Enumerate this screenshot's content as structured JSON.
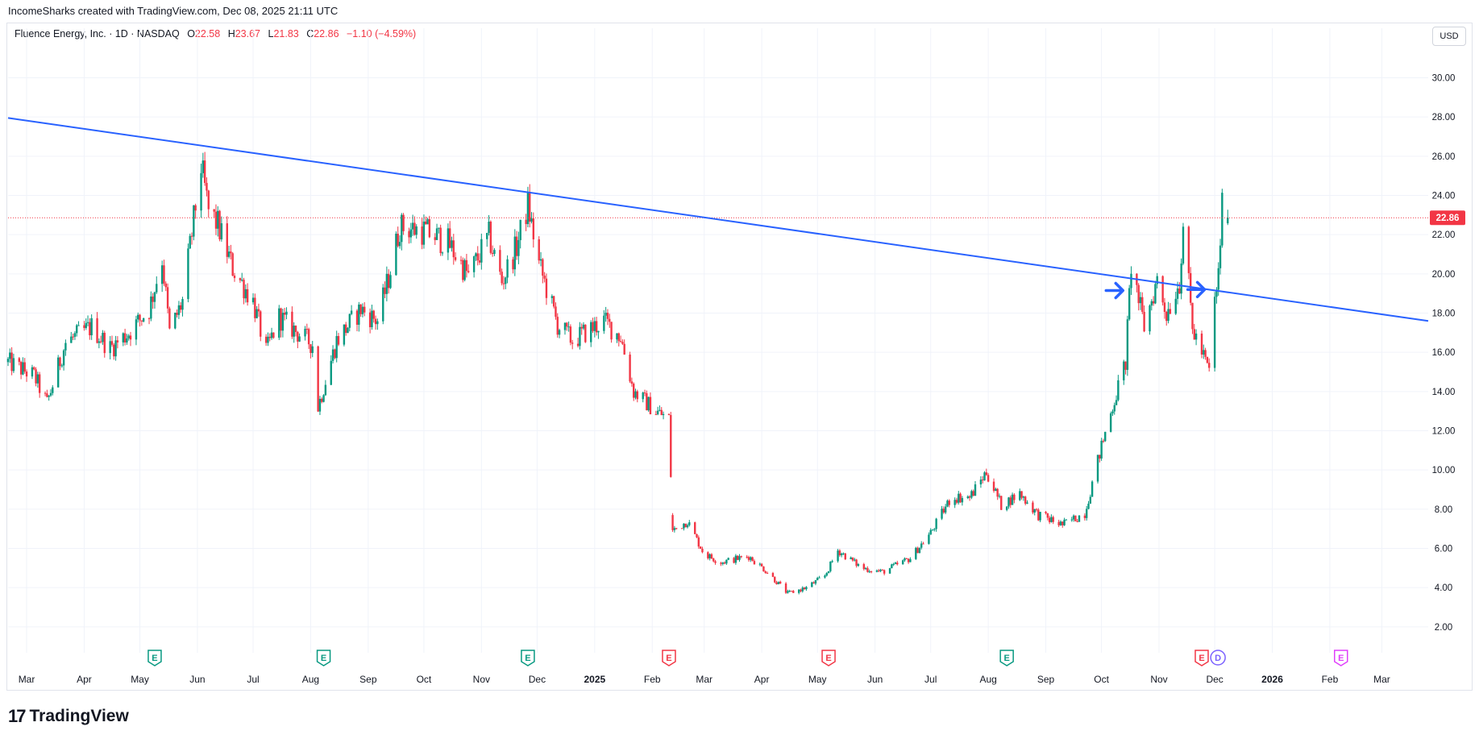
{
  "header": {
    "attribution": "IncomeSharks created with TradingView.com, Dec 08, 2025 21:11 UTC"
  },
  "legend": {
    "symbol": "Fluence Energy, Inc. · 1D · NASDAQ",
    "o_label": "O",
    "o_value": "22.58",
    "h_label": "H",
    "h_value": "23.67",
    "l_label": "L",
    "l_value": "21.83",
    "c_label": "C",
    "c_value": "22.86",
    "change": "−1.10 (−4.59%)"
  },
  "currency_button": "USD",
  "footer": {
    "brand": "TradingView",
    "logo_mark": "17"
  },
  "colors": {
    "up": "#089981",
    "down": "#f23645",
    "trendline": "#2962ff",
    "grid": "#f0f3fa",
    "last_price_bg": "#f23645",
    "event_future": "#e040fb"
  },
  "chart_data": {
    "type": "candlestick",
    "title": "Fluence Energy, Inc.",
    "interval": "1D",
    "exchange": "NASDAQ",
    "currency": "USD",
    "ylim": [
      1.5,
      31.5
    ],
    "y_ticks": [
      "2.00",
      "4.00",
      "6.00",
      "8.00",
      "10.00",
      "12.00",
      "14.00",
      "16.00",
      "18.00",
      "20.00",
      "22.00",
      "24.00",
      "26.00",
      "28.00",
      "30.00"
    ],
    "x_ticks": [
      "Mar",
      "Apr",
      "May",
      "Jun",
      "Jul",
      "Aug",
      "Sep",
      "Oct",
      "Nov",
      "Dec",
      "2025",
      "Feb",
      "Mar",
      "Apr",
      "May",
      "Jun",
      "Jul",
      "Aug",
      "Sep",
      "Oct",
      "Nov",
      "Dec",
      "2026",
      "Feb",
      "Mar"
    ],
    "x_tick_dates": [
      "2024-03-01",
      "2024-04-01",
      "2024-05-01",
      "2024-06-01",
      "2024-07-01",
      "2024-08-01",
      "2024-09-01",
      "2024-10-01",
      "2024-11-01",
      "2024-12-01",
      "2025-01-01",
      "2025-02-01",
      "2025-03-01",
      "2025-04-01",
      "2025-05-01",
      "2025-06-01",
      "2025-07-01",
      "2025-08-01",
      "2025-09-01",
      "2025-10-01",
      "2025-11-01",
      "2025-12-01",
      "2026-01-01",
      "2026-02-01",
      "2026-03-01"
    ],
    "last_price": "22.86",
    "price_anchors": [
      [
        "2024-02-20",
        15.5
      ],
      [
        "2024-03-05",
        14.8
      ],
      [
        "2024-03-12",
        13.4
      ],
      [
        "2024-03-22",
        16.5
      ],
      [
        "2024-04-05",
        17.3
      ],
      [
        "2024-04-15",
        16.2
      ],
      [
        "2024-04-25",
        17.0
      ],
      [
        "2024-05-06",
        18.2
      ],
      [
        "2024-05-13",
        20.8
      ],
      [
        "2024-05-17",
        17.0
      ],
      [
        "2024-05-24",
        18.6
      ],
      [
        "2024-06-03",
        25.5
      ],
      [
        "2024-06-07",
        23.2
      ],
      [
        "2024-06-12",
        22.5
      ],
      [
        "2024-06-20",
        20.3
      ],
      [
        "2024-07-01",
        18.6
      ],
      [
        "2024-07-08",
        16.0
      ],
      [
        "2024-07-15",
        17.8
      ],
      [
        "2024-07-25",
        17.0
      ],
      [
        "2024-08-02",
        16.4
      ],
      [
        "2024-08-05",
        13.2
      ],
      [
        "2024-08-15",
        16.6
      ],
      [
        "2024-08-28",
        18.2
      ],
      [
        "2024-09-06",
        17.6
      ],
      [
        "2024-09-12",
        19.8
      ],
      [
        "2024-09-18",
        22.4
      ],
      [
        "2024-10-01",
        22.2
      ],
      [
        "2024-10-14",
        21.6
      ],
      [
        "2024-10-25",
        19.9
      ],
      [
        "2024-11-05",
        21.9
      ],
      [
        "2024-11-12",
        19.6
      ],
      [
        "2024-11-20",
        21.4
      ],
      [
        "2024-11-26",
        23.5
      ],
      [
        "2024-12-02",
        20.5
      ],
      [
        "2024-12-12",
        17.4
      ],
      [
        "2024-12-20",
        16.6
      ],
      [
        "2025-01-06",
        17.6
      ],
      [
        "2025-01-15",
        16.8
      ],
      [
        "2025-01-22",
        14.0
      ],
      [
        "2025-02-03",
        13.0
      ],
      [
        "2025-02-10",
        12.6
      ],
      [
        "2025-02-12",
        6.9
      ],
      [
        "2025-02-20",
        7.4
      ],
      [
        "2025-03-01",
        5.7
      ],
      [
        "2025-03-10",
        5.3
      ],
      [
        "2025-03-25",
        5.6
      ],
      [
        "2025-04-04",
        4.8
      ],
      [
        "2025-04-15",
        3.7
      ],
      [
        "2025-04-25",
        4.0
      ],
      [
        "2025-05-05",
        4.6
      ],
      [
        "2025-05-12",
        5.9
      ],
      [
        "2025-05-25",
        5.0
      ],
      [
        "2025-06-05",
        4.8
      ],
      [
        "2025-06-20",
        5.5
      ],
      [
        "2025-07-01",
        6.8
      ],
      [
        "2025-07-12",
        8.6
      ],
      [
        "2025-07-22",
        8.6
      ],
      [
        "2025-07-31",
        9.9
      ],
      [
        "2025-08-08",
        8.2
      ],
      [
        "2025-08-18",
        8.8
      ],
      [
        "2025-08-28",
        7.7
      ],
      [
        "2025-09-10",
        7.2
      ],
      [
        "2025-09-22",
        7.8
      ],
      [
        "2025-10-01",
        11.2
      ],
      [
        "2025-10-08",
        13.6
      ],
      [
        "2025-10-14",
        15.5
      ],
      [
        "2025-10-17",
        20.5
      ],
      [
        "2025-10-24",
        17.3
      ],
      [
        "2025-10-31",
        19.7
      ],
      [
        "2025-11-05",
        18.0
      ],
      [
        "2025-11-12",
        19.6
      ],
      [
        "2025-11-14",
        22.6
      ],
      [
        "2025-11-19",
        17.2
      ],
      [
        "2025-11-24",
        16.0
      ],
      [
        "2025-11-28",
        15.0
      ],
      [
        "2025-12-01",
        18.6
      ],
      [
        "2025-12-03",
        19.9
      ],
      [
        "2025-12-05",
        23.6
      ],
      [
        "2025-12-08",
        22.86
      ]
    ],
    "trendline": {
      "start": [
        "2024-02-20",
        27.95
      ],
      "end": [
        "2026-03-26",
        17.6
      ],
      "color": "#2962ff"
    },
    "horizontal_line": {
      "value": 22.86,
      "style": "dotted",
      "color": "#f23645"
    },
    "arrow_markers": [
      {
        "date": "2025-10-13",
        "value": 19.15,
        "direction": "right"
      },
      {
        "date": "2025-11-26",
        "value": 19.2,
        "direction": "right"
      }
    ],
    "earnings_markers": [
      {
        "date": "2024-05-09",
        "label": "E",
        "kind": "positive"
      },
      {
        "date": "2024-08-08",
        "label": "E",
        "kind": "positive"
      },
      {
        "date": "2024-11-26",
        "label": "E",
        "kind": "positive"
      },
      {
        "date": "2025-02-10",
        "label": "E",
        "kind": "negative"
      },
      {
        "date": "2025-05-07",
        "label": "E",
        "kind": "negative"
      },
      {
        "date": "2025-08-11",
        "label": "E",
        "kind": "positive"
      },
      {
        "date": "2025-11-24",
        "label": "E",
        "kind": "negative"
      },
      {
        "date": "2026-02-07",
        "label": "E",
        "kind": "upcoming"
      }
    ],
    "dividend_marker": {
      "date": "2025-12-01",
      "label": "D"
    }
  }
}
